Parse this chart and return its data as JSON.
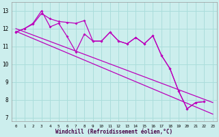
{
  "xlabel": "Windchill (Refroidissement éolien,°C)",
  "background_color": "#cceeed",
  "grid_color": "#aadddb",
  "line_color": "#bb00bb",
  "xlim": [
    -0.5,
    23.5
  ],
  "ylim": [
    6.8,
    13.5
  ],
  "yticks": [
    7,
    8,
    9,
    10,
    11,
    12,
    13
  ],
  "xticks": [
    0,
    1,
    2,
    3,
    4,
    5,
    6,
    7,
    8,
    9,
    10,
    11,
    12,
    13,
    14,
    15,
    16,
    17,
    18,
    19,
    20,
    21,
    22,
    23
  ],
  "series1": [
    11.8,
    12.0,
    12.3,
    13.0,
    12.1,
    12.3,
    11.55,
    10.7,
    11.7,
    11.3,
    11.3,
    11.8,
    11.3,
    11.15,
    11.5,
    11.15,
    11.6,
    10.5,
    9.75,
    8.5,
    7.5,
    7.85,
    7.9
  ],
  "series2": [
    11.8,
    12.0,
    12.25,
    12.85,
    12.55,
    12.4,
    12.35,
    12.3,
    12.45,
    11.3,
    11.3,
    11.8,
    11.3,
    11.15,
    11.5,
    11.15,
    11.6,
    10.5,
    9.75,
    8.5,
    7.5,
    7.85,
    7.9
  ],
  "trend1_x": [
    0,
    23
  ],
  "trend1_y": [
    11.85,
    7.2
  ],
  "trend2_x": [
    0,
    23
  ],
  "trend2_y": [
    12.0,
    7.85
  ]
}
